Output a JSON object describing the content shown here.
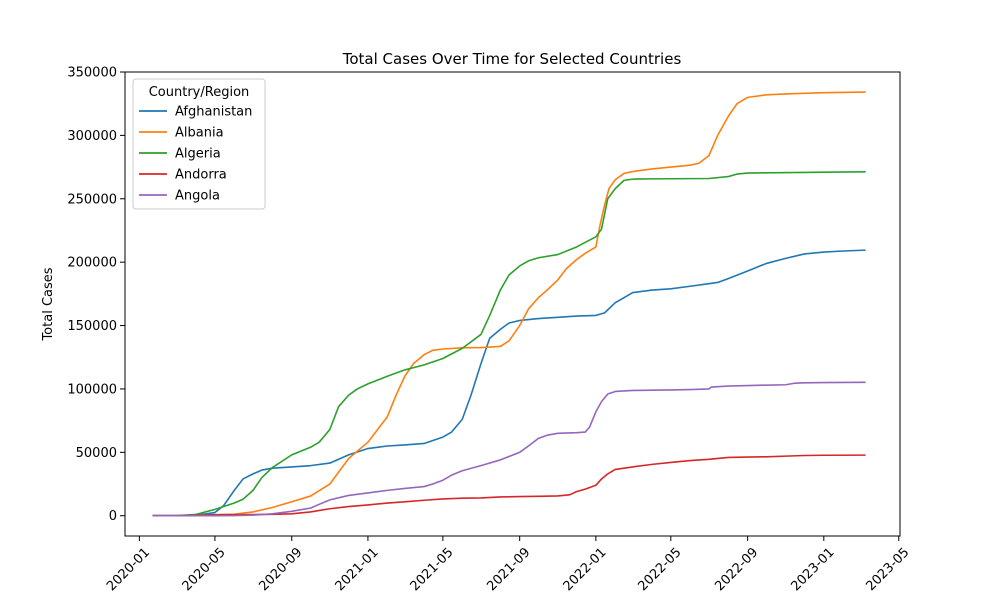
{
  "chart_data": {
    "type": "line",
    "title": "Total Cases Over Time for Selected Countries",
    "xlabel": "",
    "ylabel": "Total Cases",
    "xlim": [
      "2019-12-09",
      "2023-05-03"
    ],
    "ylim": [
      -16000,
      350000
    ],
    "grid": false,
    "legend": {
      "title": "Country/Region",
      "position": "top-left"
    },
    "x_ticks": [
      "2020-01",
      "2020-05",
      "2020-09",
      "2021-01",
      "2021-05",
      "2021-09",
      "2022-01",
      "2022-05",
      "2022-09",
      "2023-01",
      "2023-05"
    ],
    "y_ticks": [
      "0",
      "50000",
      "100000",
      "150000",
      "200000",
      "250000",
      "300000",
      "350000"
    ],
    "y_tick_values": [
      0,
      50000,
      100000,
      150000,
      200000,
      250000,
      300000,
      350000
    ],
    "series": [
      {
        "name": "Afghanistan",
        "color": "#1f77b4",
        "points": [
          [
            "2020-01-22",
            0
          ],
          [
            "2020-03-01",
            0
          ],
          [
            "2020-04-01",
            300
          ],
          [
            "2020-05-01",
            2500
          ],
          [
            "2020-05-15",
            8000
          ],
          [
            "2020-06-01",
            20000
          ],
          [
            "2020-06-15",
            29000
          ],
          [
            "2020-07-01",
            33000
          ],
          [
            "2020-07-15",
            36000
          ],
          [
            "2020-08-01",
            37500
          ],
          [
            "2020-09-01",
            38500
          ],
          [
            "2020-10-01",
            39500
          ],
          [
            "2020-11-01",
            41500
          ],
          [
            "2020-12-01",
            48000
          ],
          [
            "2021-01-01",
            53000
          ],
          [
            "2021-02-01",
            55000
          ],
          [
            "2021-03-01",
            55800
          ],
          [
            "2021-04-01",
            57000
          ],
          [
            "2021-05-01",
            62000
          ],
          [
            "2021-05-15",
            66000
          ],
          [
            "2021-06-01",
            76000
          ],
          [
            "2021-06-15",
            95000
          ],
          [
            "2021-07-01",
            120000
          ],
          [
            "2021-07-15",
            140000
          ],
          [
            "2021-08-01",
            147000
          ],
          [
            "2021-08-15",
            152000
          ],
          [
            "2021-09-01",
            154000
          ],
          [
            "2021-10-01",
            155500
          ],
          [
            "2021-11-01",
            156500
          ],
          [
            "2021-12-01",
            157500
          ],
          [
            "2022-01-01",
            158000
          ],
          [
            "2022-01-15",
            160000
          ],
          [
            "2022-02-01",
            168000
          ],
          [
            "2022-02-15",
            172000
          ],
          [
            "2022-03-01",
            176000
          ],
          [
            "2022-04-01",
            178000
          ],
          [
            "2022-05-01",
            179000
          ],
          [
            "2022-06-01",
            181000
          ],
          [
            "2022-07-01",
            183000
          ],
          [
            "2022-07-15",
            184000
          ],
          [
            "2022-08-01",
            187000
          ],
          [
            "2022-09-01",
            193000
          ],
          [
            "2022-10-01",
            199000
          ],
          [
            "2022-11-01",
            203000
          ],
          [
            "2022-12-01",
            206500
          ],
          [
            "2023-01-01",
            208000
          ],
          [
            "2023-02-01",
            208800
          ],
          [
            "2023-03-09",
            209500
          ]
        ]
      },
      {
        "name": "Albania",
        "color": "#ff7f0e",
        "points": [
          [
            "2020-01-22",
            0
          ],
          [
            "2020-03-01",
            0
          ],
          [
            "2020-04-01",
            400
          ],
          [
            "2020-05-01",
            800
          ],
          [
            "2020-06-01",
            1200
          ],
          [
            "2020-07-01",
            3000
          ],
          [
            "2020-08-01",
            6500
          ],
          [
            "2020-09-01",
            11000
          ],
          [
            "2020-10-01",
            15500
          ],
          [
            "2020-11-01",
            25000
          ],
          [
            "2020-12-01",
            45000
          ],
          [
            "2021-01-01",
            58000
          ],
          [
            "2021-02-01",
            78000
          ],
          [
            "2021-02-15",
            95000
          ],
          [
            "2021-03-01",
            110000
          ],
          [
            "2021-03-15",
            120000
          ],
          [
            "2021-04-01",
            127000
          ],
          [
            "2021-04-15",
            130500
          ],
          [
            "2021-05-01",
            131500
          ],
          [
            "2021-06-01",
            132400
          ],
          [
            "2021-07-01",
            132600
          ],
          [
            "2021-08-01",
            133500
          ],
          [
            "2021-08-15",
            138000
          ],
          [
            "2021-09-01",
            150000
          ],
          [
            "2021-09-15",
            163000
          ],
          [
            "2021-10-01",
            172000
          ],
          [
            "2021-10-15",
            178000
          ],
          [
            "2021-11-01",
            186000
          ],
          [
            "2021-11-15",
            195000
          ],
          [
            "2021-12-01",
            202000
          ],
          [
            "2021-12-15",
            207000
          ],
          [
            "2022-01-01",
            212000
          ],
          [
            "2022-01-08",
            230000
          ],
          [
            "2022-01-15",
            245000
          ],
          [
            "2022-01-22",
            258000
          ],
          [
            "2022-02-01",
            265000
          ],
          [
            "2022-02-15",
            270000
          ],
          [
            "2022-03-01",
            271500
          ],
          [
            "2022-04-01",
            273500
          ],
          [
            "2022-05-01",
            275000
          ],
          [
            "2022-06-01",
            276500
          ],
          [
            "2022-06-15",
            278000
          ],
          [
            "2022-07-01",
            284000
          ],
          [
            "2022-07-15",
            300000
          ],
          [
            "2022-08-01",
            315000
          ],
          [
            "2022-08-15",
            325000
          ],
          [
            "2022-09-01",
            330000
          ],
          [
            "2022-10-01",
            332000
          ],
          [
            "2022-11-01",
            332700
          ],
          [
            "2022-12-01",
            333200
          ],
          [
            "2023-01-01",
            333700
          ],
          [
            "2023-03-09",
            334200
          ]
        ]
      },
      {
        "name": "Algeria",
        "color": "#2ca02c",
        "points": [
          [
            "2020-01-22",
            0
          ],
          [
            "2020-03-01",
            0
          ],
          [
            "2020-04-01",
            1000
          ],
          [
            "2020-05-01",
            5000
          ],
          [
            "2020-06-01",
            10000
          ],
          [
            "2020-06-15",
            13000
          ],
          [
            "2020-07-01",
            20000
          ],
          [
            "2020-07-15",
            30000
          ],
          [
            "2020-08-01",
            38000
          ],
          [
            "2020-09-01",
            48000
          ],
          [
            "2020-10-01",
            54000
          ],
          [
            "2020-10-15",
            58000
          ],
          [
            "2020-11-01",
            68000
          ],
          [
            "2020-11-15",
            86000
          ],
          [
            "2020-12-01",
            95000
          ],
          [
            "2020-12-15",
            100000
          ],
          [
            "2021-01-01",
            104000
          ],
          [
            "2021-02-01",
            110000
          ],
          [
            "2021-03-01",
            115000
          ],
          [
            "2021-04-01",
            119000
          ],
          [
            "2021-05-01",
            124000
          ],
          [
            "2021-06-01",
            132000
          ],
          [
            "2021-07-01",
            143000
          ],
          [
            "2021-07-15",
            158000
          ],
          [
            "2021-08-01",
            178000
          ],
          [
            "2021-08-15",
            190000
          ],
          [
            "2021-09-01",
            197000
          ],
          [
            "2021-09-15",
            201000
          ],
          [
            "2021-10-01",
            203500
          ],
          [
            "2021-11-01",
            206000
          ],
          [
            "2021-12-01",
            212000
          ],
          [
            "2022-01-01",
            220000
          ],
          [
            "2022-01-10",
            226000
          ],
          [
            "2022-01-15",
            238000
          ],
          [
            "2022-01-20",
            250000
          ],
          [
            "2022-02-01",
            258000
          ],
          [
            "2022-02-15",
            264500
          ],
          [
            "2022-03-01",
            265500
          ],
          [
            "2022-04-01",
            265700
          ],
          [
            "2022-05-01",
            265800
          ],
          [
            "2022-06-01",
            265900
          ],
          [
            "2022-07-01",
            266000
          ],
          [
            "2022-08-01",
            267500
          ],
          [
            "2022-08-15",
            269500
          ],
          [
            "2022-09-01",
            270300
          ],
          [
            "2022-10-01",
            270500
          ],
          [
            "2022-12-01",
            270800
          ],
          [
            "2023-01-01",
            271000
          ],
          [
            "2023-03-09",
            271300
          ]
        ]
      },
      {
        "name": "Andorra",
        "color": "#d62728",
        "points": [
          [
            "2020-01-22",
            0
          ],
          [
            "2020-03-01",
            0
          ],
          [
            "2020-04-01",
            400
          ],
          [
            "2020-05-01",
            750
          ],
          [
            "2020-06-01",
            850
          ],
          [
            "2020-07-01",
            900
          ],
          [
            "2020-08-01",
            1100
          ],
          [
            "2020-09-01",
            1500
          ],
          [
            "2020-10-01",
            3000
          ],
          [
            "2020-11-01",
            5500
          ],
          [
            "2020-12-01",
            7200
          ],
          [
            "2021-01-01",
            8500
          ],
          [
            "2021-02-01",
            10000
          ],
          [
            "2021-03-01",
            11000
          ],
          [
            "2021-04-01",
            12200
          ],
          [
            "2021-05-01",
            13200
          ],
          [
            "2021-06-01",
            13800
          ],
          [
            "2021-07-01",
            14000
          ],
          [
            "2021-08-01",
            14800
          ],
          [
            "2021-09-01",
            15100
          ],
          [
            "2021-10-01",
            15300
          ],
          [
            "2021-11-01",
            15600
          ],
          [
            "2021-11-20",
            16500
          ],
          [
            "2021-12-01",
            19000
          ],
          [
            "2021-12-15",
            21000
          ],
          [
            "2022-01-01",
            24000
          ],
          [
            "2022-01-10",
            29000
          ],
          [
            "2022-01-20",
            33000
          ],
          [
            "2022-02-01",
            36500
          ],
          [
            "2022-03-01",
            38500
          ],
          [
            "2022-04-01",
            40500
          ],
          [
            "2022-05-01",
            42000
          ],
          [
            "2022-06-01",
            43500
          ],
          [
            "2022-07-01",
            44500
          ],
          [
            "2022-08-01",
            46000
          ],
          [
            "2022-09-01",
            46300
          ],
          [
            "2022-10-01",
            46500
          ],
          [
            "2022-11-01",
            47000
          ],
          [
            "2022-12-01",
            47500
          ],
          [
            "2023-01-01",
            47700
          ],
          [
            "2023-03-09",
            47800
          ]
        ]
      },
      {
        "name": "Angola",
        "color": "#9467bd",
        "points": [
          [
            "2020-01-22",
            0
          ],
          [
            "2020-03-01",
            0
          ],
          [
            "2020-04-01",
            0
          ],
          [
            "2020-05-01",
            50
          ],
          [
            "2020-06-01",
            100
          ],
          [
            "2020-07-01",
            500
          ],
          [
            "2020-08-01",
            1500
          ],
          [
            "2020-09-01",
            3500
          ],
          [
            "2020-10-01",
            6000
          ],
          [
            "2020-10-15",
            9000
          ],
          [
            "2020-11-01",
            12500
          ],
          [
            "2020-12-01",
            16000
          ],
          [
            "2021-01-01",
            18000
          ],
          [
            "2021-02-01",
            20000
          ],
          [
            "2021-03-01",
            21500
          ],
          [
            "2021-04-01",
            23000
          ],
          [
            "2021-04-15",
            25000
          ],
          [
            "2021-05-01",
            28000
          ],
          [
            "2021-05-15",
            32000
          ],
          [
            "2021-06-01",
            35500
          ],
          [
            "2021-07-01",
            39500
          ],
          [
            "2021-08-01",
            44000
          ],
          [
            "2021-09-01",
            50000
          ],
          [
            "2021-09-15",
            55000
          ],
          [
            "2021-10-01",
            61000
          ],
          [
            "2021-10-15",
            63500
          ],
          [
            "2021-11-01",
            65000
          ],
          [
            "2021-12-01",
            65500
          ],
          [
            "2021-12-15",
            66000
          ],
          [
            "2021-12-22",
            70000
          ],
          [
            "2022-01-01",
            82000
          ],
          [
            "2022-01-10",
            90000
          ],
          [
            "2022-01-20",
            96000
          ],
          [
            "2022-02-01",
            98000
          ],
          [
            "2022-03-01",
            98800
          ],
          [
            "2022-04-01",
            99000
          ],
          [
            "2022-05-01",
            99200
          ],
          [
            "2022-06-01",
            99500
          ],
          [
            "2022-07-01",
            100000
          ],
          [
            "2022-07-05",
            101500
          ],
          [
            "2022-08-01",
            102300
          ],
          [
            "2022-09-01",
            102700
          ],
          [
            "2022-10-01",
            103000
          ],
          [
            "2022-11-01",
            103300
          ],
          [
            "2022-11-15",
            104500
          ],
          [
            "2022-12-01",
            104800
          ],
          [
            "2023-01-01",
            105000
          ],
          [
            "2023-03-09",
            105200
          ]
        ]
      }
    ]
  }
}
